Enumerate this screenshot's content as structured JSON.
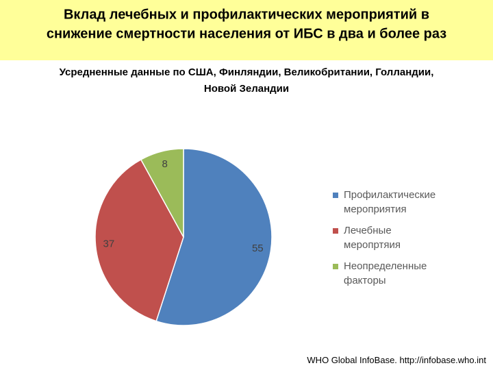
{
  "chart_data": {
    "type": "pie",
    "title": [
      "Вклад лечебных и профилактических мероприятий в",
      "снижение смертности населения от ИБС в два и более раз"
    ],
    "subtitle": [
      "Усредненные данные по США, Финляндии, Великобритании, Голландии,",
      "Новой Зеландии"
    ],
    "categories": [
      "Профилактические мероприятия",
      "Лечебные меропртяия",
      "Неопределенные факторы"
    ],
    "values": [
      55,
      37,
      8
    ],
    "colors": [
      "#4f81bd",
      "#c0504d",
      "#9bbb59"
    ],
    "source": "WHO Global InfoBase. http://infobase.who.int"
  }
}
